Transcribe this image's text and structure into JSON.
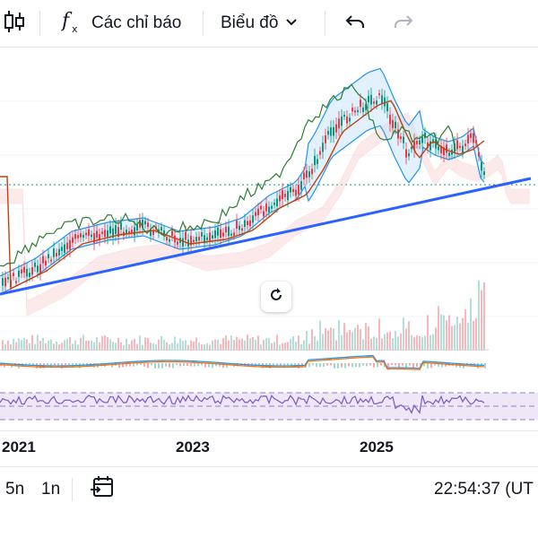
{
  "toolbar": {
    "candle_icon": "candlestick-icon",
    "indicators_label": "Các chỉ báo",
    "chart_type_label": "Biểu đồ",
    "undo_icon": "undo-icon",
    "redo_icon": "redo-icon"
  },
  "date_axis": {
    "labels": [
      "2021",
      "2023",
      "2025"
    ]
  },
  "bottom_bar": {
    "ranges": [
      "5n",
      "1n"
    ],
    "goto_icon": "calendar-goto-icon",
    "clock": "22:54:37 (UT"
  },
  "colors": {
    "candle_up": "#089981",
    "candle_down": "#f23645",
    "trendline": "#2962ff",
    "bollinger": "#2196f3",
    "ma_fast": "#c2410c",
    "lagging_span": "#2e7d32",
    "rsi": "#7e57c2",
    "macd": "#2196f3",
    "signal": "#ff6d00"
  }
}
